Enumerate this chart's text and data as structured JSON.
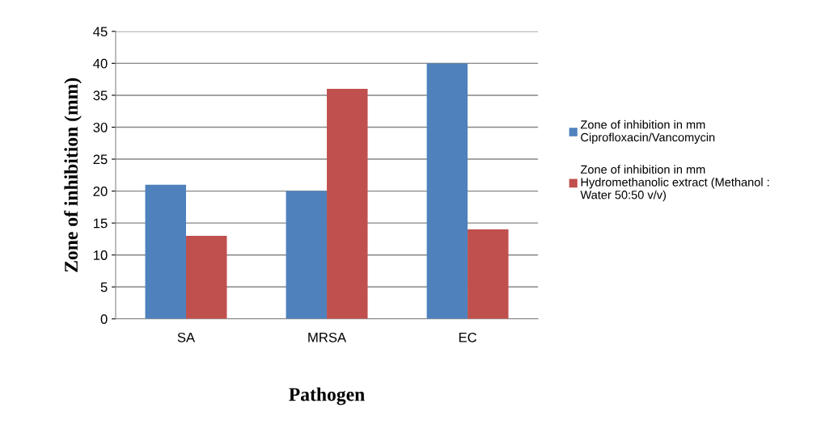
{
  "chart_data": {
    "type": "bar",
    "xlabel": "Pathogen",
    "ylabel": "Zone of inhibition (mm)",
    "categories": [
      "SA",
      "MRSA",
      "EC"
    ],
    "series": [
      {
        "name": "Zone of inhibition in mm\nCiprofloxacin/Vancomycin",
        "color": "#4f81bd",
        "values": [
          21,
          20,
          40
        ]
      },
      {
        "name": "Zone of inhibition in mm\nHydromethanolic extract (Methanol :\nWater 50:50 v/v)",
        "color": "#c0504d",
        "values": [
          13,
          36,
          14
        ]
      }
    ],
    "ylim": [
      0,
      45
    ],
    "yticks": [
      0,
      5,
      10,
      15,
      20,
      25,
      30,
      35,
      40,
      45
    ],
    "grid": "y",
    "legend": "right"
  }
}
